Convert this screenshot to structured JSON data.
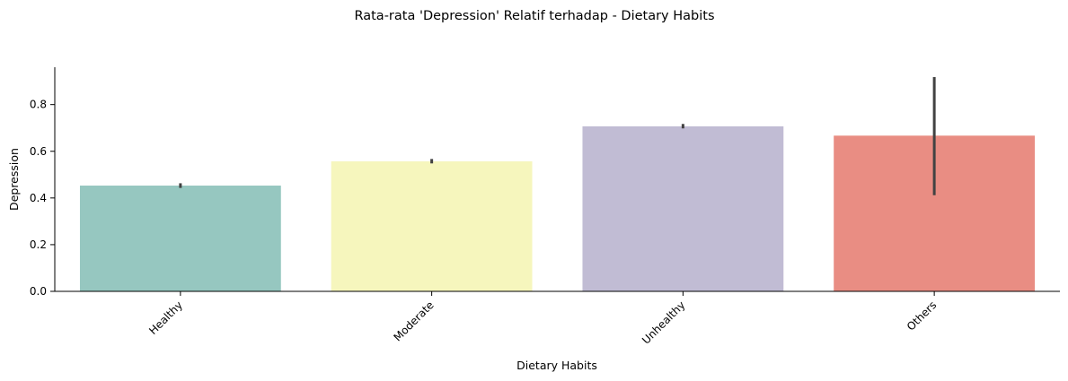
{
  "chart_data": {
    "type": "bar",
    "title": "Rata-rata 'Depression' Relatif terhadap - Dietary Habits",
    "xlabel": "Dietary Habits",
    "ylabel": "Depression",
    "categories": [
      "Healthy",
      "Moderate",
      "Unhealthy",
      "Others"
    ],
    "values": [
      0.453,
      0.557,
      0.707,
      0.667
    ],
    "error_low": [
      0.443,
      0.548,
      0.698,
      0.412
    ],
    "error_high": [
      0.463,
      0.567,
      0.717,
      0.918
    ],
    "colors": [
      "#96c7c0",
      "#f6f6bd",
      "#c1bcd4",
      "#e98d83"
    ],
    "ylim": [
      0,
      0.96
    ],
    "yticks": [
      0.0,
      0.2,
      0.4,
      0.6,
      0.8
    ],
    "ytick_labels": [
      "0.0",
      "0.2",
      "0.4",
      "0.6",
      "0.8"
    ],
    "grid": false,
    "legend": "none"
  }
}
